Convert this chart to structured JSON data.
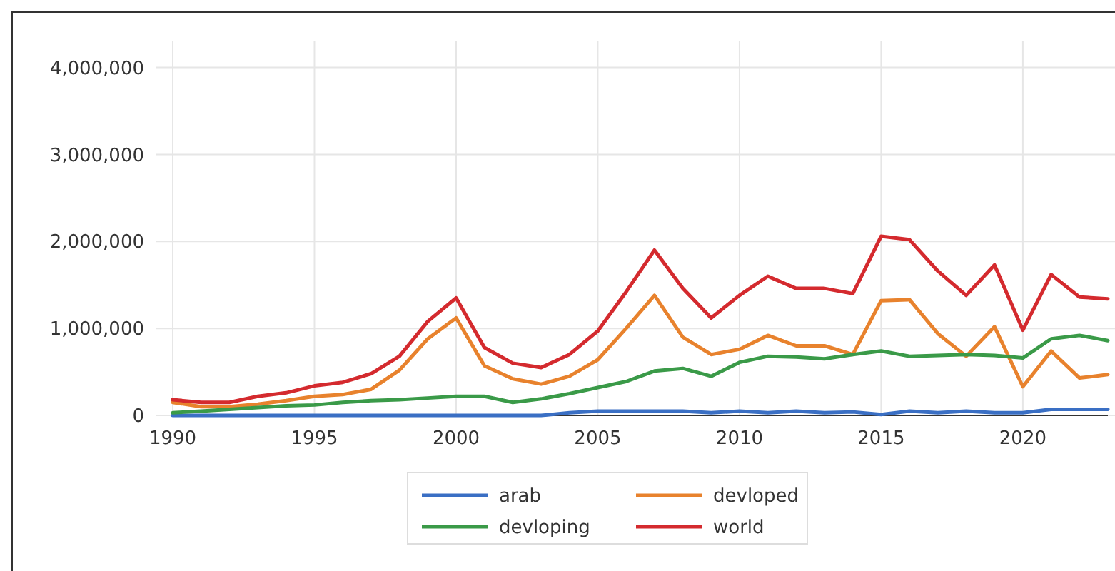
{
  "chart_data": {
    "type": "line",
    "x": [
      1990,
      1991,
      1992,
      1993,
      1994,
      1995,
      1996,
      1997,
      1998,
      1999,
      2000,
      2001,
      2002,
      2003,
      2004,
      2005,
      2006,
      2007,
      2008,
      2009,
      2010,
      2011,
      2012,
      2013,
      2014,
      2015,
      2016,
      2017,
      2018,
      2019,
      2020,
      2021,
      2022,
      2023
    ],
    "series": [
      {
        "name": "arab",
        "color": "#3a6fc4",
        "values": [
          0,
          0,
          0,
          0,
          0,
          0,
          0,
          0,
          0,
          0,
          0,
          0,
          0,
          0,
          30000,
          50000,
          50000,
          50000,
          50000,
          30000,
          50000,
          30000,
          50000,
          30000,
          40000,
          10000,
          50000,
          30000,
          50000,
          30000,
          30000,
          70000,
          70000,
          70000
        ]
      },
      {
        "name": "devloped",
        "color": "#e8822d",
        "values": [
          150000,
          100000,
          100000,
          130000,
          170000,
          220000,
          240000,
          300000,
          520000,
          880000,
          1120000,
          570000,
          420000,
          360000,
          450000,
          640000,
          1000000,
          1380000,
          900000,
          700000,
          760000,
          920000,
          800000,
          800000,
          700000,
          1320000,
          1330000,
          940000,
          680000,
          1020000,
          330000,
          740000,
          430000,
          470000
        ]
      },
      {
        "name": "devloping",
        "color": "#3a9a48",
        "values": [
          30000,
          50000,
          70000,
          90000,
          110000,
          120000,
          150000,
          170000,
          180000,
          200000,
          220000,
          220000,
          150000,
          190000,
          250000,
          320000,
          390000,
          510000,
          540000,
          450000,
          610000,
          680000,
          670000,
          650000,
          700000,
          740000,
          680000,
          690000,
          700000,
          690000,
          660000,
          880000,
          920000,
          860000
        ]
      },
      {
        "name": "world",
        "color": "#d42a2e",
        "values": [
          180000,
          150000,
          150000,
          220000,
          260000,
          340000,
          380000,
          480000,
          680000,
          1080000,
          1350000,
          780000,
          600000,
          550000,
          700000,
          970000,
          1420000,
          1900000,
          1460000,
          1120000,
          1380000,
          1600000,
          1460000,
          1460000,
          1400000,
          2060000,
          2020000,
          1660000,
          1380000,
          1730000,
          980000,
          1620000,
          1360000,
          1340000
        ]
      }
    ],
    "xlim": [
      1990,
      2023
    ],
    "xticks": [
      1990,
      1995,
      2000,
      2005,
      2010,
      2015,
      2020
    ],
    "ylim": [
      0,
      4300000
    ],
    "yticks": [
      {
        "value": 0,
        "label": "0"
      },
      {
        "value": 1000000,
        "label": "1,000,000"
      },
      {
        "value": 2000000,
        "label": "2,000,000"
      },
      {
        "value": 3000000,
        "label": "3,000,000"
      },
      {
        "value": 4000000,
        "label": "4,000,000"
      }
    ],
    "grid": true,
    "legend": "bottom",
    "marker": "none",
    "line_style": "solid"
  }
}
